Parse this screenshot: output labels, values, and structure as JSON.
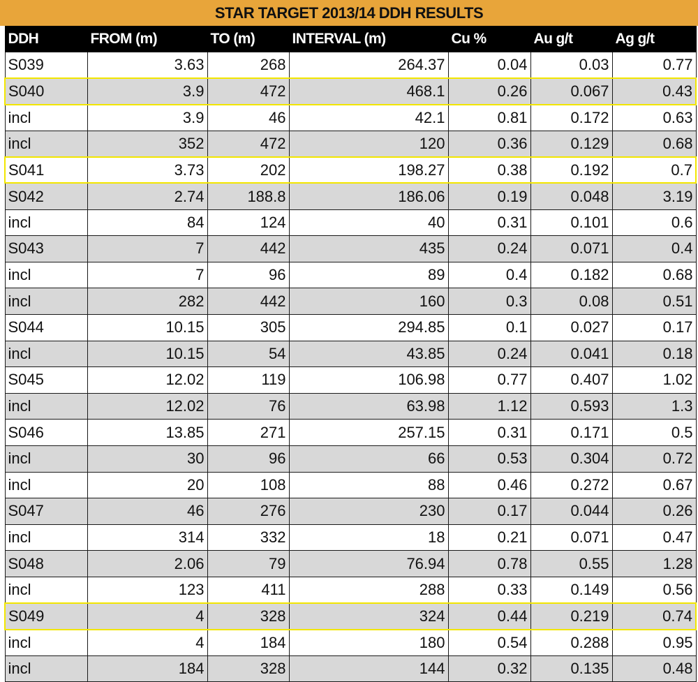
{
  "title": "STAR TARGET 2013/14 DDH RESULTS",
  "colors": {
    "title_bg": "#e8a53a",
    "header_bg": "#000000",
    "alt_row": "#d8d8d8",
    "highlight": "#f2e600"
  },
  "columns": [
    "DDH",
    "FROM (m)",
    "TO (m)",
    "INTERVAL (m)",
    "Cu %",
    "Au g/t",
    "Ag g/t"
  ],
  "rows": [
    {
      "cells": [
        "S039",
        "3.63",
        "268",
        "264.37",
        "0.04",
        "0.03",
        "0.77"
      ],
      "alt": false,
      "highlight": false
    },
    {
      "cells": [
        "S040",
        "3.9",
        "472",
        "468.1",
        "0.26",
        "0.067",
        "0.43"
      ],
      "alt": true,
      "highlight": true
    },
    {
      "cells": [
        "incl",
        "3.9",
        "46",
        "42.1",
        "0.81",
        "0.172",
        "0.63"
      ],
      "alt": false,
      "highlight": false
    },
    {
      "cells": [
        "incl",
        "352",
        "472",
        "120",
        "0.36",
        "0.129",
        "0.68"
      ],
      "alt": true,
      "highlight": false
    },
    {
      "cells": [
        "S041",
        "3.73",
        "202",
        "198.27",
        "0.38",
        "0.192",
        "0.7"
      ],
      "alt": false,
      "highlight": true
    },
    {
      "cells": [
        "S042",
        "2.74",
        "188.8",
        "186.06",
        "0.19",
        "0.048",
        "3.19"
      ],
      "alt": true,
      "highlight": false
    },
    {
      "cells": [
        "incl",
        "84",
        "124",
        "40",
        "0.31",
        "0.101",
        "0.6"
      ],
      "alt": false,
      "highlight": false
    },
    {
      "cells": [
        "S043",
        "7",
        "442",
        "435",
        "0.24",
        "0.071",
        "0.4"
      ],
      "alt": true,
      "highlight": false
    },
    {
      "cells": [
        "incl",
        "7",
        "96",
        "89",
        "0.4",
        "0.182",
        "0.68"
      ],
      "alt": false,
      "highlight": false
    },
    {
      "cells": [
        "incl",
        "282",
        "442",
        "160",
        "0.3",
        "0.08",
        "0.51"
      ],
      "alt": true,
      "highlight": false
    },
    {
      "cells": [
        "S044",
        "10.15",
        "305",
        "294.85",
        "0.1",
        "0.027",
        "0.17"
      ],
      "alt": false,
      "highlight": false
    },
    {
      "cells": [
        "incl",
        "10.15",
        "54",
        "43.85",
        "0.24",
        "0.041",
        "0.18"
      ],
      "alt": true,
      "highlight": false
    },
    {
      "cells": [
        "S045",
        "12.02",
        "119",
        "106.98",
        "0.77",
        "0.407",
        "1.02"
      ],
      "alt": false,
      "highlight": false
    },
    {
      "cells": [
        "incl",
        "12.02",
        "76",
        "63.98",
        "1.12",
        "0.593",
        "1.3"
      ],
      "alt": true,
      "highlight": false
    },
    {
      "cells": [
        "S046",
        "13.85",
        "271",
        "257.15",
        "0.31",
        "0.171",
        "0.5"
      ],
      "alt": false,
      "highlight": false
    },
    {
      "cells": [
        "incl",
        "30",
        "96",
        "66",
        "0.53",
        "0.304",
        "0.72"
      ],
      "alt": true,
      "highlight": false
    },
    {
      "cells": [
        "incl",
        "20",
        "108",
        "88",
        "0.46",
        "0.272",
        "0.67"
      ],
      "alt": false,
      "highlight": false
    },
    {
      "cells": [
        "S047",
        "46",
        "276",
        "230",
        "0.17",
        "0.044",
        "0.26"
      ],
      "alt": true,
      "highlight": false
    },
    {
      "cells": [
        "incl",
        "314",
        "332",
        "18",
        "0.21",
        "0.071",
        "0.47"
      ],
      "alt": false,
      "highlight": false
    },
    {
      "cells": [
        "S048",
        "2.06",
        "79",
        "76.94",
        "0.78",
        "0.55",
        "1.28"
      ],
      "alt": true,
      "highlight": false
    },
    {
      "cells": [
        "incl",
        "123",
        "411",
        "288",
        "0.33",
        "0.149",
        "0.56"
      ],
      "alt": false,
      "highlight": false
    },
    {
      "cells": [
        "S049",
        "4",
        "328",
        "324",
        "0.44",
        "0.219",
        "0.74"
      ],
      "alt": true,
      "highlight": true
    },
    {
      "cells": [
        "incl",
        "4",
        "184",
        "180",
        "0.54",
        "0.288",
        "0.95"
      ],
      "alt": false,
      "highlight": false
    },
    {
      "cells": [
        "incl",
        "184",
        "328",
        "144",
        "0.32",
        "0.135",
        "0.48"
      ],
      "alt": true,
      "highlight": false
    }
  ]
}
